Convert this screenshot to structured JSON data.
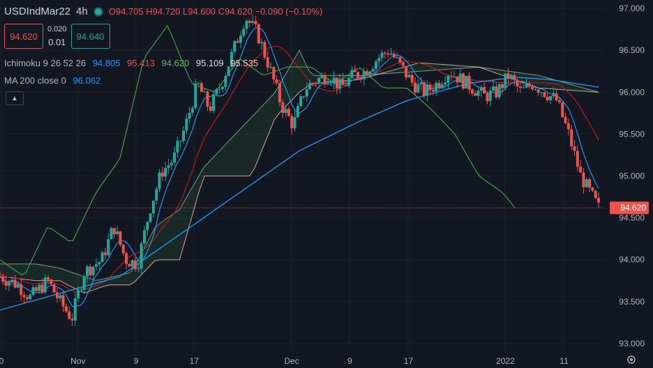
{
  "header": {
    "symbol": "USDIndMar22",
    "timeframe": "4h",
    "ohlc": {
      "o_label": "O",
      "o": "94.705",
      "h_label": "H",
      "h": "94.720",
      "l_label": "L",
      "l": "94.600",
      "c_label": "C",
      "c": "94.620",
      "change": "−0.090 (−0.10%)"
    }
  },
  "trade": {
    "sell_price": "94.620",
    "spread_top": "0.020",
    "spread_bottom": "0.01",
    "buy_price": "94.640"
  },
  "indicators": {
    "ichimoku": {
      "label": "Ichimoku 9 26 52 26",
      "v1": "94.805",
      "v2": "95.413",
      "v3": "94.620",
      "v4": "95.109",
      "v5": "95.535"
    },
    "ma": {
      "label": "MA 200 close 0",
      "value": "96.062"
    }
  },
  "colors": {
    "background": "#131722",
    "up": "#26a69a",
    "down": "#ef5350",
    "tenkan": "#2196f3",
    "kijun": "#b71c1c",
    "chikou": "#43a047",
    "span_a": "#a5d6a7",
    "span_b": "#ffccbc",
    "ma": "#2196f3",
    "grid": "#1e222d",
    "axis_text": "#b2b5be"
  },
  "chart_data": {
    "type": "candlestick",
    "title": "USDIndMar22 4h",
    "ylim": [
      92.9,
      97.1
    ],
    "y_ticks": [
      "97.000",
      "96.500",
      "96.000",
      "95.500",
      "95.000",
      "94.500",
      "94.000",
      "93.500",
      "93.000"
    ],
    "x_ticks": [
      "0",
      "Nov",
      "9",
      "17",
      "Dec",
      "9",
      "17",
      "2022",
      "11"
    ],
    "last_price": "94.620",
    "close_path": [
      [
        0,
        93.8
      ],
      [
        0.03,
        93.7
      ],
      [
        0.05,
        93.55
      ],
      [
        0.08,
        93.75
      ],
      [
        0.1,
        93.5
      ],
      [
        0.12,
        93.3
      ],
      [
        0.14,
        93.85
      ],
      [
        0.17,
        94.0
      ],
      [
        0.19,
        94.4
      ],
      [
        0.21,
        94.0
      ],
      [
        0.23,
        93.95
      ],
      [
        0.25,
        94.6
      ],
      [
        0.27,
        95.05
      ],
      [
        0.29,
        95.2
      ],
      [
        0.31,
        95.6
      ],
      [
        0.33,
        96.1
      ],
      [
        0.35,
        95.8
      ],
      [
        0.37,
        96.1
      ],
      [
        0.39,
        96.5
      ],
      [
        0.41,
        96.9
      ],
      [
        0.43,
        96.7
      ],
      [
        0.45,
        96.3
      ],
      [
        0.47,
        95.85
      ],
      [
        0.49,
        95.6
      ],
      [
        0.51,
        96.05
      ],
      [
        0.53,
        96.15
      ],
      [
        0.55,
        96.2
      ],
      [
        0.57,
        96.05
      ],
      [
        0.59,
        96.2
      ],
      [
        0.61,
        96.25
      ],
      [
        0.63,
        96.4
      ],
      [
        0.65,
        96.5
      ],
      [
        0.67,
        96.3
      ],
      [
        0.69,
        96.1
      ],
      [
        0.71,
        96.0
      ],
      [
        0.73,
        96.1
      ],
      [
        0.75,
        96.25
      ],
      [
        0.77,
        96.15
      ],
      [
        0.79,
        96.05
      ],
      [
        0.81,
        95.95
      ],
      [
        0.83,
        96.0
      ],
      [
        0.85,
        96.2
      ],
      [
        0.87,
        96.0
      ],
      [
        0.89,
        96.1
      ],
      [
        0.91,
        96.0
      ],
      [
        0.93,
        95.9
      ],
      [
        0.95,
        95.5
      ],
      [
        0.97,
        95.0
      ],
      [
        1.0,
        94.62
      ]
    ],
    "ma200": [
      [
        0,
        93.4
      ],
      [
        0.2,
        93.8
      ],
      [
        0.3,
        94.3
      ],
      [
        0.4,
        94.8
      ],
      [
        0.5,
        95.3
      ],
      [
        0.6,
        95.65
      ],
      [
        0.68,
        95.9
      ],
      [
        0.78,
        96.1
      ],
      [
        0.86,
        96.18
      ],
      [
        0.92,
        96.15
      ],
      [
        1.0,
        96.06
      ]
    ],
    "span_a": [
      [
        0,
        93.95
      ],
      [
        0.06,
        93.95
      ],
      [
        0.1,
        93.9
      ],
      [
        0.16,
        93.75
      ],
      [
        0.22,
        93.85
      ],
      [
        0.26,
        94.4
      ],
      [
        0.3,
        94.6
      ],
      [
        0.34,
        95.1
      ],
      [
        0.38,
        95.4
      ],
      [
        0.42,
        95.7
      ],
      [
        0.46,
        96.0
      ],
      [
        0.5,
        96.5
      ],
      [
        0.52,
        96.2
      ],
      [
        0.6,
        96.2
      ],
      [
        0.7,
        96.25
      ],
      [
        0.8,
        96.3
      ],
      [
        0.9,
        96.2
      ],
      [
        1.0,
        96.0
      ]
    ],
    "span_b": [
      [
        0,
        93.8
      ],
      [
        0.06,
        93.75
      ],
      [
        0.1,
        93.75
      ],
      [
        0.14,
        93.6
      ],
      [
        0.18,
        93.7
      ],
      [
        0.22,
        93.7
      ],
      [
        0.26,
        94.0
      ],
      [
        0.3,
        94.0
      ],
      [
        0.34,
        95.0
      ],
      [
        0.38,
        95.0
      ],
      [
        0.42,
        95.0
      ],
      [
        0.46,
        95.7
      ],
      [
        0.5,
        96.0
      ],
      [
        0.52,
        96.1
      ],
      [
        0.6,
        96.15
      ],
      [
        0.7,
        96.35
      ],
      [
        0.8,
        96.3
      ],
      [
        0.9,
        96.05
      ],
      [
        1.0,
        96.0
      ]
    ],
    "chikou": [
      [
        0,
        94.0
      ],
      [
        0.04,
        93.8
      ],
      [
        0.08,
        94.4
      ],
      [
        0.12,
        94.2
      ],
      [
        0.16,
        94.8
      ],
      [
        0.2,
        95.2
      ],
      [
        0.24,
        96.4
      ],
      [
        0.28,
        96.8
      ],
      [
        0.32,
        96.1
      ],
      [
        0.36,
        96.0
      ],
      [
        0.4,
        96.4
      ],
      [
        0.44,
        96.2
      ],
      [
        0.48,
        96.3
      ],
      [
        0.52,
        96.3
      ],
      [
        0.56,
        96.1
      ],
      [
        0.6,
        96.3
      ],
      [
        0.64,
        96.05
      ],
      [
        0.68,
        96.05
      ],
      [
        0.72,
        95.8
      ],
      [
        0.76,
        95.5
      ],
      [
        0.8,
        95.0
      ],
      [
        0.84,
        94.8
      ],
      [
        0.86,
        94.62
      ]
    ]
  }
}
